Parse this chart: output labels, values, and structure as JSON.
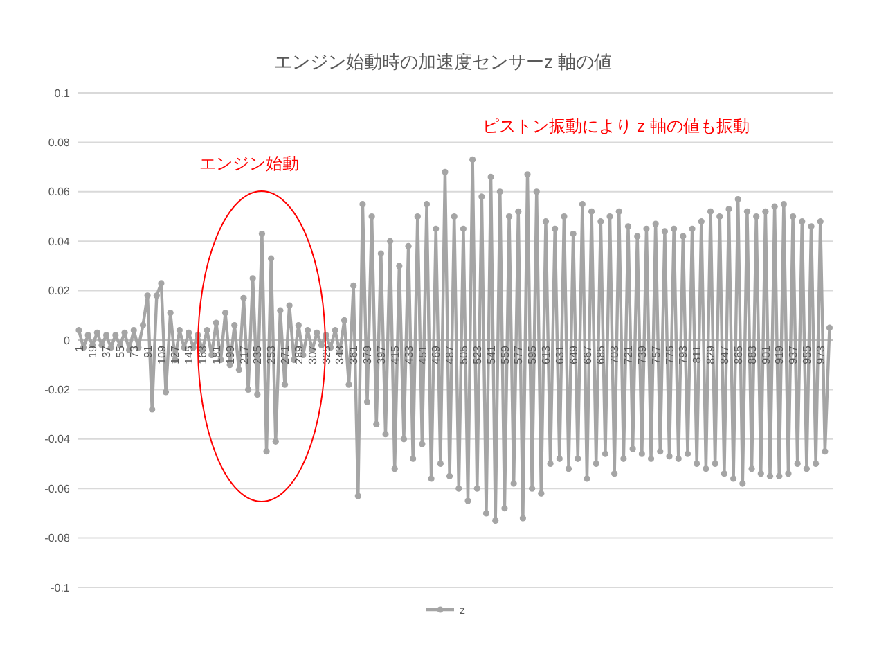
{
  "chart_data": {
    "type": "line",
    "title": "エンジン始動時の加速度センサーz 軸の値",
    "x": [
      1,
      7,
      13,
      19,
      25,
      31,
      37,
      43,
      49,
      55,
      61,
      67,
      73,
      79,
      85,
      91,
      97,
      103,
      109,
      115,
      121,
      127,
      133,
      139,
      145,
      151,
      157,
      163,
      169,
      175,
      181,
      187,
      193,
      199,
      205,
      211,
      217,
      223,
      229,
      235,
      241,
      247,
      253,
      259,
      265,
      271,
      277,
      283,
      289,
      295,
      301,
      307,
      313,
      319,
      325,
      331,
      337,
      343,
      349,
      355,
      361,
      367,
      373,
      379,
      385,
      391,
      397,
      403,
      409,
      415,
      421,
      427,
      433,
      439,
      445,
      451,
      457,
      463,
      469,
      475,
      481,
      487,
      493,
      499,
      505,
      511,
      517,
      523,
      529,
      535,
      541,
      547,
      553,
      559,
      565,
      571,
      577,
      583,
      589,
      595,
      601,
      607,
      613,
      619,
      625,
      631,
      637,
      643,
      649,
      655,
      661,
      667,
      673,
      679,
      685,
      691,
      697,
      703,
      709,
      715,
      721,
      727,
      733,
      739,
      745,
      751,
      757,
      763,
      769,
      775,
      781,
      787,
      793,
      799,
      805,
      811,
      817,
      823,
      829,
      835,
      841,
      847,
      853,
      859,
      865,
      871,
      877,
      883,
      889,
      895,
      901,
      907,
      913,
      919,
      925,
      931,
      937,
      943,
      949,
      955,
      961,
      967,
      973,
      979,
      985
    ],
    "series": [
      {
        "name": "z",
        "color": "#a5a5a5",
        "values": [
          0.004,
          -0.003,
          0.002,
          -0.002,
          0.003,
          -0.002,
          0.002,
          -0.003,
          0.002,
          -0.002,
          0.003,
          -0.004,
          0.004,
          -0.003,
          0.006,
          0.018,
          -0.028,
          0.018,
          0.023,
          -0.021,
          0.011,
          -0.008,
          0.004,
          -0.003,
          0.003,
          -0.003,
          0.002,
          -0.004,
          0.004,
          -0.006,
          0.007,
          -0.008,
          0.011,
          -0.01,
          0.006,
          -0.012,
          0.017,
          -0.02,
          0.025,
          -0.022,
          0.043,
          -0.045,
          0.033,
          -0.041,
          0.012,
          -0.018,
          0.014,
          -0.008,
          0.006,
          -0.006,
          0.004,
          -0.004,
          0.003,
          -0.002,
          0.002,
          -0.003,
          0.004,
          -0.005,
          0.008,
          -0.018,
          0.022,
          -0.063,
          0.055,
          -0.025,
          0.05,
          -0.034,
          0.035,
          -0.038,
          0.04,
          -0.052,
          0.03,
          -0.04,
          0.038,
          -0.048,
          0.05,
          -0.042,
          0.055,
          -0.056,
          0.045,
          -0.05,
          0.068,
          -0.055,
          0.05,
          -0.06,
          0.045,
          -0.065,
          0.073,
          -0.06,
          0.058,
          -0.07,
          0.066,
          -0.073,
          0.06,
          -0.068,
          0.05,
          -0.058,
          0.052,
          -0.072,
          0.067,
          -0.06,
          0.06,
          -0.062,
          0.048,
          -0.05,
          0.045,
          -0.048,
          0.05,
          -0.052,
          0.043,
          -0.048,
          0.055,
          -0.056,
          0.052,
          -0.05,
          0.048,
          -0.046,
          0.05,
          -0.054,
          0.052,
          -0.048,
          0.046,
          -0.044,
          0.042,
          -0.046,
          0.045,
          -0.048,
          0.047,
          -0.045,
          0.044,
          -0.047,
          0.045,
          -0.048,
          0.042,
          -0.046,
          0.045,
          -0.05,
          0.048,
          -0.052,
          0.052,
          -0.05,
          0.05,
          -0.054,
          0.053,
          -0.056,
          0.057,
          -0.058,
          0.052,
          -0.052,
          0.05,
          -0.054,
          0.052,
          -0.055,
          0.054,
          -0.055,
          0.055,
          -0.054,
          0.05,
          -0.05,
          0.048,
          -0.052,
          0.046,
          -0.05,
          0.048,
          -0.045,
          0.005
        ]
      }
    ],
    "xlim": [
      0,
      990
    ],
    "xticks": [
      1,
      19,
      37,
      55,
      73,
      91,
      109,
      127,
      145,
      163,
      181,
      199,
      217,
      235,
      253,
      271,
      289,
      307,
      325,
      343,
      361,
      379,
      397,
      415,
      433,
      451,
      469,
      487,
      505,
      523,
      541,
      559,
      577,
      595,
      613,
      631,
      649,
      667,
      685,
      703,
      721,
      739,
      757,
      775,
      793,
      811,
      829,
      847,
      865,
      883,
      901,
      919,
      937,
      955,
      973
    ],
    "ylim": [
      -0.1,
      0.1
    ],
    "yticks": [
      -0.1,
      -0.08,
      -0.06,
      -0.04,
      -0.02,
      0,
      0.02,
      0.04,
      0.06,
      0.08,
      0.1
    ],
    "grid": "y",
    "legend": "bottom",
    "marker": "circle",
    "line_style": "solid",
    "annotations": [
      "エンジン始動",
      "ピストン振動により z 軸の値も振動"
    ]
  }
}
